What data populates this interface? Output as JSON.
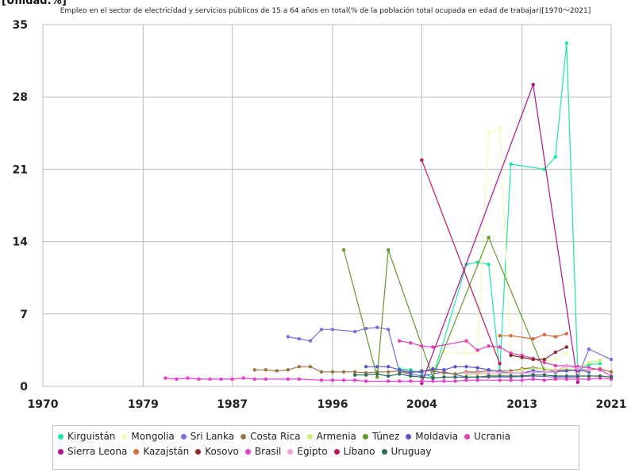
{
  "chart_data": {
    "type": "line",
    "title": "Empleo en el sector de electricidad y servicios públicos de 15 a 64 años en total(% de la población total ocupada en edad de trabajar)[1970〜2021]",
    "unit_label": "[Unidad:%]",
    "xlim": [
      1970,
      2021
    ],
    "ylim": [
      0,
      35
    ],
    "x_ticks": [
      1970,
      1979,
      1987,
      1996,
      2004,
      2013,
      2021
    ],
    "y_ticks": [
      0,
      7,
      14,
      21,
      28,
      35
    ],
    "grid": true,
    "legend_position": "bottom",
    "series": [
      {
        "name": "Kirguistán",
        "color": "#1de9a0",
        "points": [
          [
            2002,
            1.7
          ],
          [
            2003,
            1.6
          ],
          [
            2005,
            0.9
          ],
          [
            2008,
            11.8
          ],
          [
            2009,
            12.0
          ],
          [
            2010,
            11.8
          ],
          [
            2011,
            1.5
          ],
          [
            2012,
            21.5
          ],
          [
            2015,
            21.0
          ],
          [
            2016,
            22.2
          ],
          [
            2017,
            33.2
          ],
          [
            2018,
            1.5
          ],
          [
            2019,
            2.1
          ],
          [
            2020,
            2.2
          ]
        ]
      },
      {
        "name": "Mongolia",
        "color": "#f3fbb8",
        "points": [
          [
            2006,
            3.3
          ],
          [
            2008,
            3.2
          ],
          [
            2009,
            3.3
          ],
          [
            2010,
            24.5
          ],
          [
            2011,
            25.0
          ],
          [
            2012,
            3.3
          ],
          [
            2013,
            3.0
          ],
          [
            2015,
            2.4
          ],
          [
            2016,
            2.6
          ],
          [
            2017,
            3.2
          ]
        ]
      },
      {
        "name": "Sri Lanka",
        "color": "#7a6fe0",
        "points": [
          [
            1992,
            4.8
          ],
          [
            1993,
            4.6
          ],
          [
            1994,
            4.4
          ],
          [
            1995,
            5.5
          ],
          [
            1996,
            5.5
          ],
          [
            1998,
            5.3
          ],
          [
            1999,
            5.6
          ],
          [
            2000,
            5.7
          ],
          [
            2001,
            5.5
          ],
          [
            2002,
            1.4
          ],
          [
            2003,
            1.2
          ],
          [
            2004,
            1.0
          ],
          [
            2006,
            1.4
          ],
          [
            2008,
            0.9
          ],
          [
            2010,
            0.9
          ],
          [
            2012,
            0.9
          ],
          [
            2014,
            1.0
          ],
          [
            2016,
            0.9
          ],
          [
            2018,
            0.9
          ],
          [
            2019,
            3.6
          ],
          [
            2021,
            2.6
          ]
        ]
      },
      {
        "name": "Costa Rica",
        "color": "#9a7646",
        "points": [
          [
            1989,
            1.6
          ],
          [
            1990,
            1.6
          ],
          [
            1991,
            1.5
          ],
          [
            1992,
            1.6
          ],
          [
            1993,
            1.9
          ],
          [
            1994,
            1.9
          ],
          [
            1995,
            1.4
          ],
          [
            1996,
            1.4
          ],
          [
            1997,
            1.4
          ],
          [
            1998,
            1.4
          ],
          [
            1999,
            1.3
          ],
          [
            2000,
            1.4
          ],
          [
            2001,
            1.4
          ],
          [
            2002,
            1.5
          ],
          [
            2003,
            1.3
          ],
          [
            2004,
            1.5
          ],
          [
            2005,
            1.5
          ],
          [
            2006,
            1.3
          ],
          [
            2007,
            1.2
          ],
          [
            2008,
            1.4
          ],
          [
            2009,
            1.4
          ],
          [
            2010,
            1.5
          ],
          [
            2011,
            1.5
          ],
          [
            2012,
            1.5
          ],
          [
            2013,
            1.7
          ],
          [
            2014,
            1.8
          ],
          [
            2015,
            1.7
          ],
          [
            2016,
            1.5
          ],
          [
            2017,
            1.6
          ],
          [
            2018,
            1.5
          ],
          [
            2019,
            1.6
          ],
          [
            2020,
            1.7
          ],
          [
            2021,
            1.4
          ]
        ]
      },
      {
        "name": "Armenia",
        "color": "#c8f07a",
        "points": [
          [
            2008,
            1.1
          ],
          [
            2009,
            1.2
          ],
          [
            2010,
            1.1
          ],
          [
            2011,
            1.1
          ],
          [
            2012,
            1.2
          ],
          [
            2013,
            1.6
          ],
          [
            2014,
            1.7
          ],
          [
            2015,
            1.7
          ],
          [
            2016,
            1.6
          ],
          [
            2017,
            1.7
          ],
          [
            2018,
            1.6
          ],
          [
            2019,
            2.3
          ],
          [
            2020,
            2.5
          ]
        ]
      },
      {
        "name": "Túnez",
        "color": "#5f9a2a",
        "points": [
          [
            1997,
            13.2
          ],
          [
            2000,
            0.9
          ],
          [
            2001,
            13.2
          ],
          [
            2005,
            0.9
          ],
          [
            2010,
            14.4
          ],
          [
            2015,
            1.5
          ]
        ]
      },
      {
        "name": "Moldavia",
        "color": "#5a55c8",
        "points": [
          [
            1999,
            1.9
          ],
          [
            2000,
            1.9
          ],
          [
            2001,
            1.9
          ],
          [
            2002,
            1.6
          ],
          [
            2003,
            1.4
          ],
          [
            2004,
            1.4
          ],
          [
            2005,
            1.7
          ],
          [
            2006,
            1.6
          ],
          [
            2007,
            1.9
          ],
          [
            2008,
            1.9
          ],
          [
            2009,
            1.8
          ],
          [
            2010,
            1.6
          ],
          [
            2011,
            1.4
          ],
          [
            2012,
            1.3
          ],
          [
            2013,
            1.3
          ],
          [
            2014,
            1.5
          ],
          [
            2015,
            1.4
          ],
          [
            2016,
            1.4
          ],
          [
            2017,
            1.5
          ],
          [
            2018,
            1.6
          ],
          [
            2019,
            1.4
          ]
        ]
      },
      {
        "name": "Ucrania",
        "color": "#e040b8",
        "points": [
          [
            2002,
            4.4
          ],
          [
            2003,
            4.2
          ],
          [
            2004,
            3.9
          ],
          [
            2005,
            3.8
          ],
          [
            2008,
            4.4
          ],
          [
            2009,
            3.5
          ],
          [
            2010,
            3.9
          ],
          [
            2011,
            3.8
          ],
          [
            2012,
            3.2
          ],
          [
            2013,
            3.0
          ],
          [
            2014,
            2.7
          ],
          [
            2015,
            2.3
          ],
          [
            2016,
            2.0
          ],
          [
            2017,
            2.0
          ],
          [
            2018,
            1.9
          ],
          [
            2019,
            1.8
          ],
          [
            2020,
            1.6
          ],
          [
            2021,
            1.0
          ]
        ]
      },
      {
        "name": "Sierra Leona",
        "color": "#b0109a",
        "points": [
          [
            2004,
            0.3
          ],
          [
            2014,
            29.2
          ],
          [
            2018,
            0.4
          ]
        ]
      },
      {
        "name": "Kazajstán",
        "color": "#d86a3a",
        "points": [
          [
            2011,
            4.9
          ],
          [
            2012,
            4.9
          ],
          [
            2014,
            4.6
          ],
          [
            2015,
            5.0
          ],
          [
            2016,
            4.8
          ],
          [
            2017,
            5.1
          ]
        ]
      },
      {
        "name": "Kosovo",
        "color": "#8a2a2a",
        "points": [
          [
            2012,
            3.0
          ],
          [
            2013,
            2.8
          ],
          [
            2014,
            2.6
          ],
          [
            2015,
            2.6
          ],
          [
            2016,
            3.3
          ],
          [
            2017,
            3.8
          ]
        ]
      },
      {
        "name": "Brasil",
        "color": "#e83ccf",
        "points": [
          [
            1981,
            0.8
          ],
          [
            1982,
            0.7
          ],
          [
            1983,
            0.8
          ],
          [
            1984,
            0.7
          ],
          [
            1985,
            0.7
          ],
          [
            1986,
            0.7
          ],
          [
            1987,
            0.7
          ],
          [
            1988,
            0.8
          ],
          [
            1989,
            0.7
          ],
          [
            1990,
            0.7
          ],
          [
            1992,
            0.7
          ],
          [
            1993,
            0.7
          ],
          [
            1995,
            0.6
          ],
          [
            1996,
            0.6
          ],
          [
            1997,
            0.6
          ],
          [
            1998,
            0.6
          ],
          [
            1999,
            0.5
          ],
          [
            2001,
            0.5
          ],
          [
            2002,
            0.5
          ],
          [
            2003,
            0.5
          ],
          [
            2004,
            0.5
          ],
          [
            2005,
            0.5
          ],
          [
            2006,
            0.5
          ],
          [
            2007,
            0.5
          ],
          [
            2008,
            0.6
          ],
          [
            2009,
            0.6
          ],
          [
            2011,
            0.6
          ],
          [
            2012,
            0.6
          ],
          [
            2013,
            0.6
          ],
          [
            2014,
            0.7
          ],
          [
            2015,
            0.6
          ],
          [
            2016,
            0.7
          ],
          [
            2017,
            0.7
          ],
          [
            2018,
            0.7
          ],
          [
            2019,
            0.7
          ],
          [
            2020,
            0.8
          ],
          [
            2021,
            0.7
          ]
        ]
      },
      {
        "name": "Egipto",
        "color": "#eea0dc",
        "points": [
          [
            2008,
            1.3
          ],
          [
            2009,
            1.3
          ],
          [
            2010,
            1.3
          ],
          [
            2011,
            1.3
          ],
          [
            2012,
            1.3
          ],
          [
            2013,
            1.3
          ],
          [
            2014,
            1.3
          ],
          [
            2015,
            1.4
          ],
          [
            2016,
            1.5
          ],
          [
            2017,
            2.0
          ],
          [
            2018,
            1.7
          ],
          [
            2019,
            1.6
          ]
        ]
      },
      {
        "name": "Líbano",
        "color": "#c0184a",
        "points": [
          [
            2004,
            21.9
          ],
          [
            2011,
            2.2
          ]
        ]
      },
      {
        "name": "Uruguay",
        "color": "#2f6b5a",
        "points": [
          [
            1998,
            1.1
          ],
          [
            1999,
            1.1
          ],
          [
            2000,
            1.2
          ],
          [
            2001,
            1.0
          ],
          [
            2002,
            1.2
          ],
          [
            2003,
            1.0
          ],
          [
            2004,
            0.9
          ],
          [
            2005,
            0.8
          ],
          [
            2006,
            0.9
          ],
          [
            2007,
            0.9
          ],
          [
            2008,
            0.9
          ],
          [
            2009,
            0.9
          ],
          [
            2010,
            1.0
          ],
          [
            2011,
            1.0
          ],
          [
            2012,
            1.0
          ],
          [
            2013,
            1.0
          ],
          [
            2014,
            1.1
          ],
          [
            2015,
            1.1
          ],
          [
            2016,
            1.0
          ],
          [
            2017,
            1.0
          ],
          [
            2018,
            1.0
          ],
          [
            2019,
            1.0
          ],
          [
            2020,
            1.0
          ],
          [
            2021,
            0.9
          ]
        ]
      }
    ]
  }
}
